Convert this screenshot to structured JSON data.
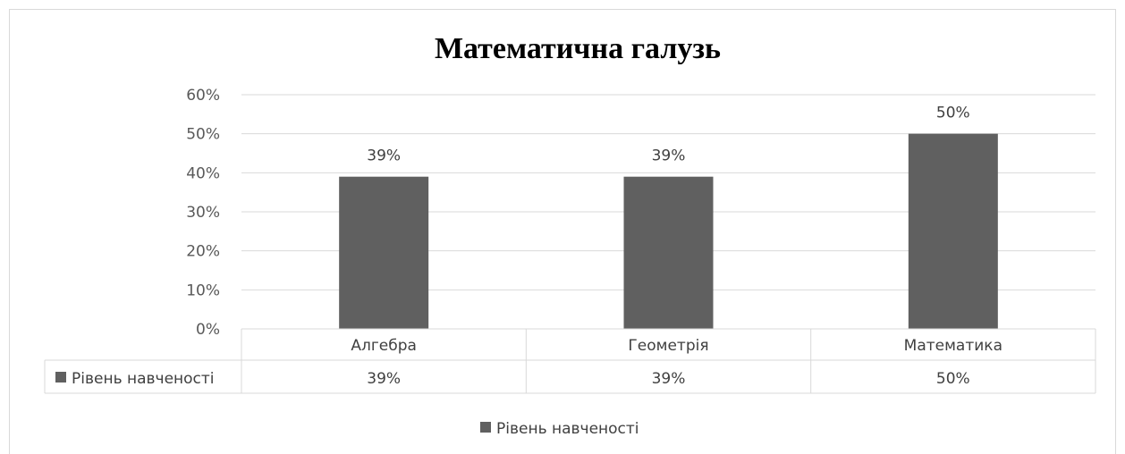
{
  "chart_data": {
    "type": "bar",
    "title": "Математична галузь",
    "categories": [
      "Алгебра",
      "Геометрія",
      "Математика"
    ],
    "series": [
      {
        "name": "Рівень навченості",
        "values": [
          0.39,
          0.39,
          0.5
        ],
        "labels": [
          "39%",
          "39%",
          "50%"
        ],
        "color": "#606060"
      }
    ],
    "ylim": [
      0,
      0.6
    ],
    "yticks": [
      "0%",
      "10%",
      "20%",
      "30%",
      "40%",
      "50%",
      "60%"
    ],
    "grid": true,
    "data_table": true,
    "legend": "bottom"
  }
}
